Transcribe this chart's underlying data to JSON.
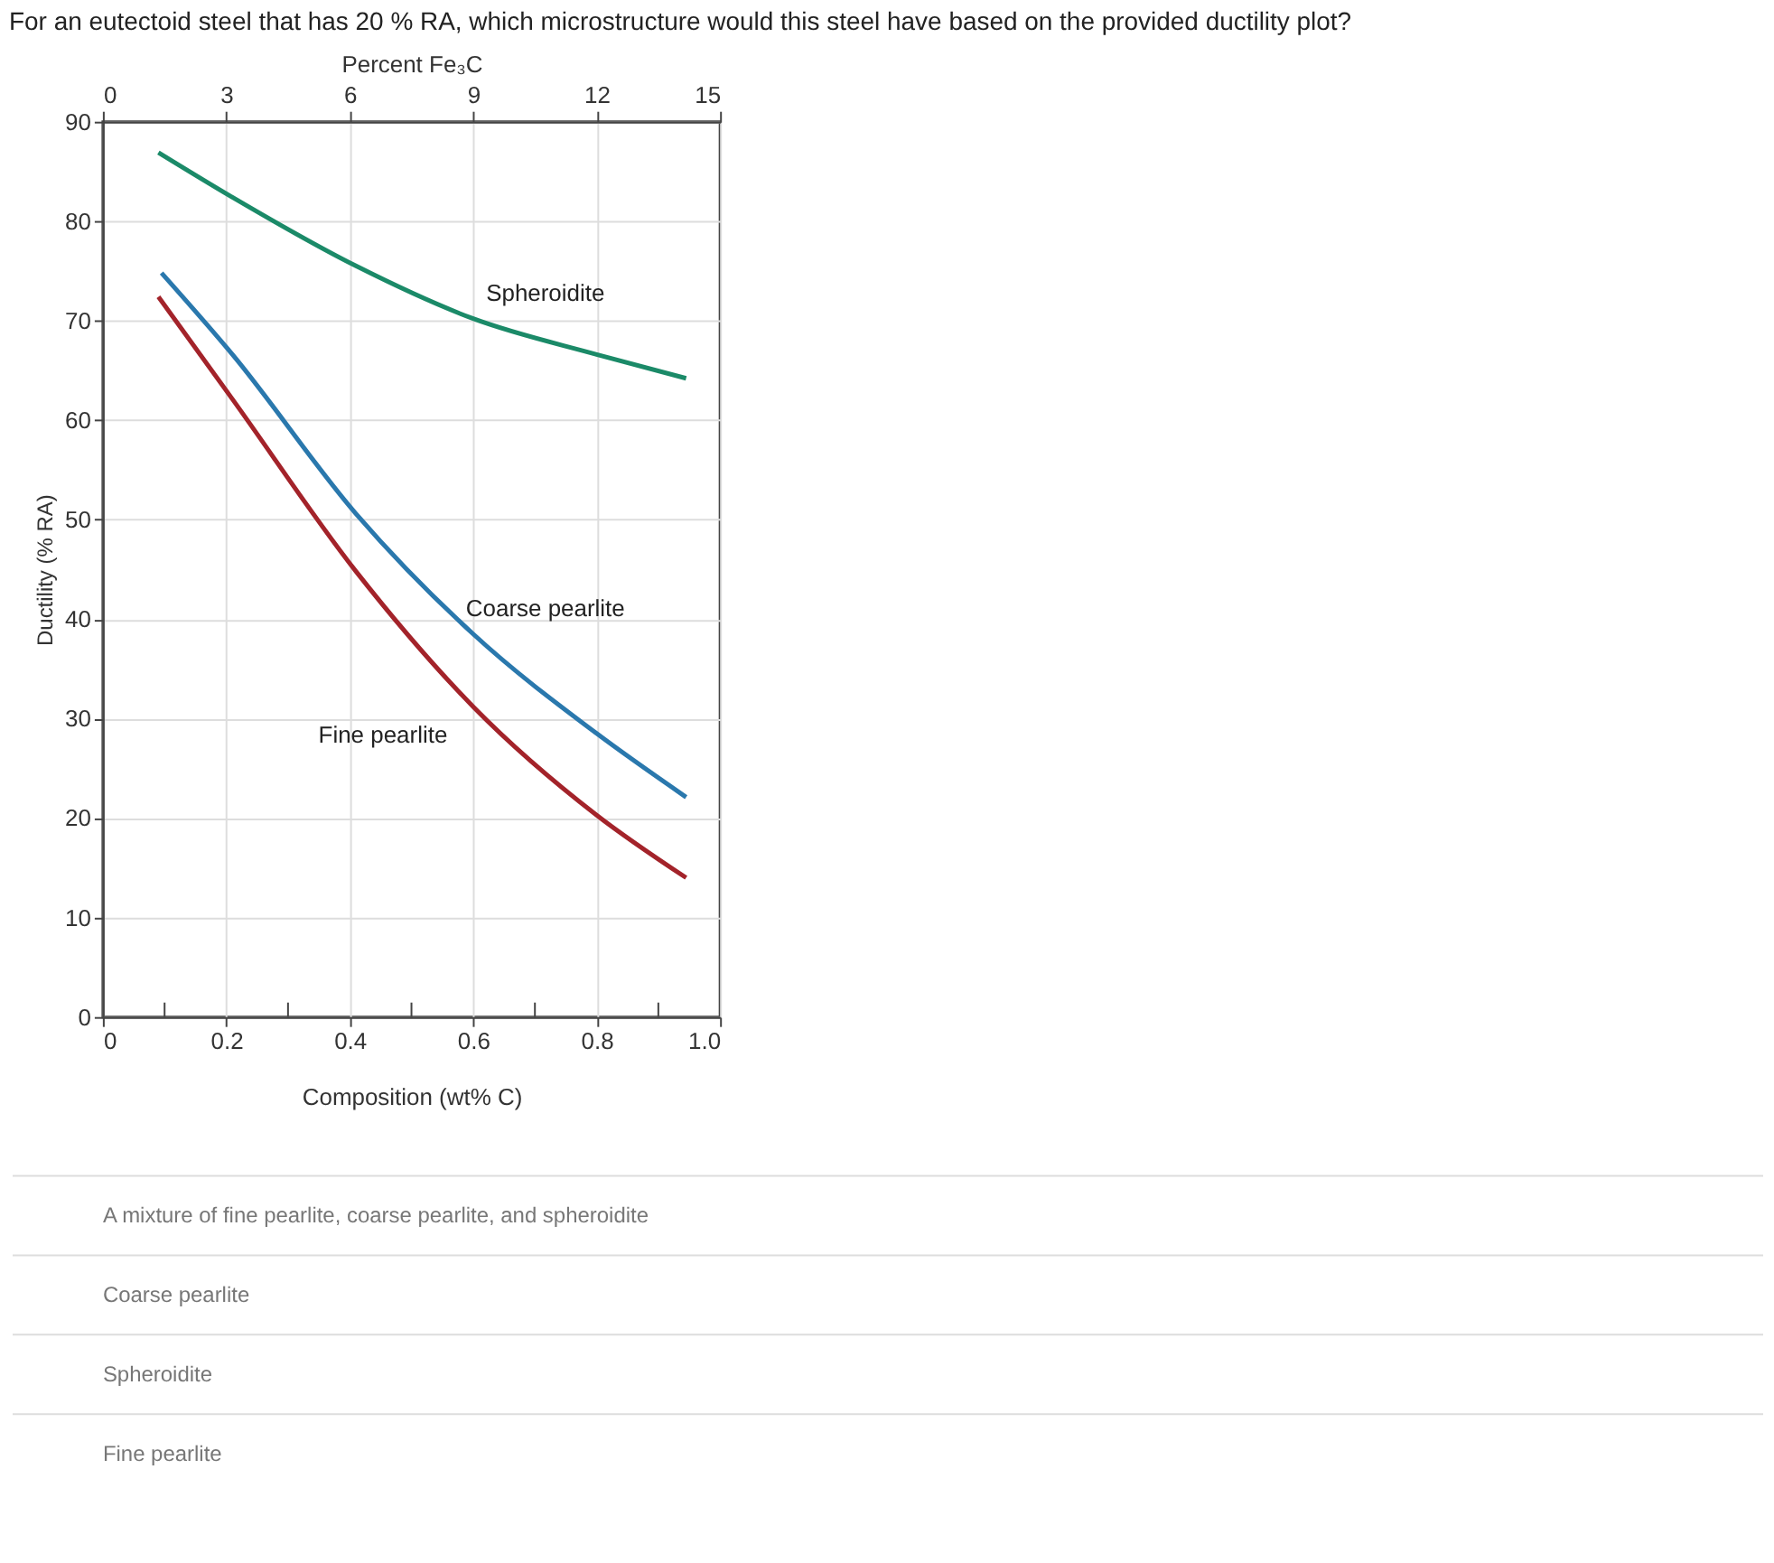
{
  "chart_data": {
    "type": "line",
    "title": "For an eutectoid steel that has 20 % RA, which microstructure would this steel have based on the provided ductility plot?",
    "xlabel": "Composition (wt% C)",
    "ylabel": "Ductility (% RA)",
    "x2label": "Percent Fe₃C",
    "xlim": [
      0,
      1
    ],
    "xticks": [
      0,
      {
        "value": 0.1,
        "label": null
      },
      0.2,
      {
        "value": 0.3,
        "label": null
      },
      0.4,
      {
        "value": 0.5,
        "label": null
      },
      0.6,
      {
        "value": 0.7,
        "label": null
      },
      0.8,
      {
        "value": 0.9,
        "label": null
      },
      {
        "value": 1,
        "label": "1.0"
      }
    ],
    "x2lim": [
      0,
      15
    ],
    "x2ticks": [
      0,
      3,
      6,
      9,
      12,
      15
    ],
    "ylim": [
      0,
      90
    ],
    "yticks": [
      0,
      10,
      20,
      30,
      40,
      50,
      60,
      70,
      80,
      90
    ],
    "grid": true,
    "legend": false,
    "marker": "none",
    "line_style": "solid",
    "series": [
      {
        "name": "Spheroidite",
        "color": "#1b8a68",
        "x": [
          0.09,
          0.21,
          0.41,
          0.6,
          0.8,
          0.945
        ],
        "values": [
          86.9,
          82.4,
          75.5,
          70.2,
          66.6,
          64.2
        ]
      },
      {
        "name": "Coarse pearlite",
        "color": "#2a78ad",
        "x": [
          0.095,
          0.21,
          0.41,
          0.6,
          0.8,
          0.945
        ],
        "values": [
          74.8,
          66.6,
          50.6,
          38.5,
          28.5,
          22.1
        ]
      },
      {
        "name": "Fine pearlite",
        "color": "#a3232a",
        "x": [
          0.09,
          0.21,
          0.41,
          0.6,
          0.8,
          0.945
        ],
        "values": [
          72.4,
          62.1,
          44.8,
          31.2,
          20.3,
          14.0
        ]
      }
    ],
    "annotations": [
      "A mixture of fine pearlite, coarse pearlite, and spheroidite",
      "Coarse pearlite",
      "Spheroidite",
      "Fine pearlite"
    ]
  }
}
